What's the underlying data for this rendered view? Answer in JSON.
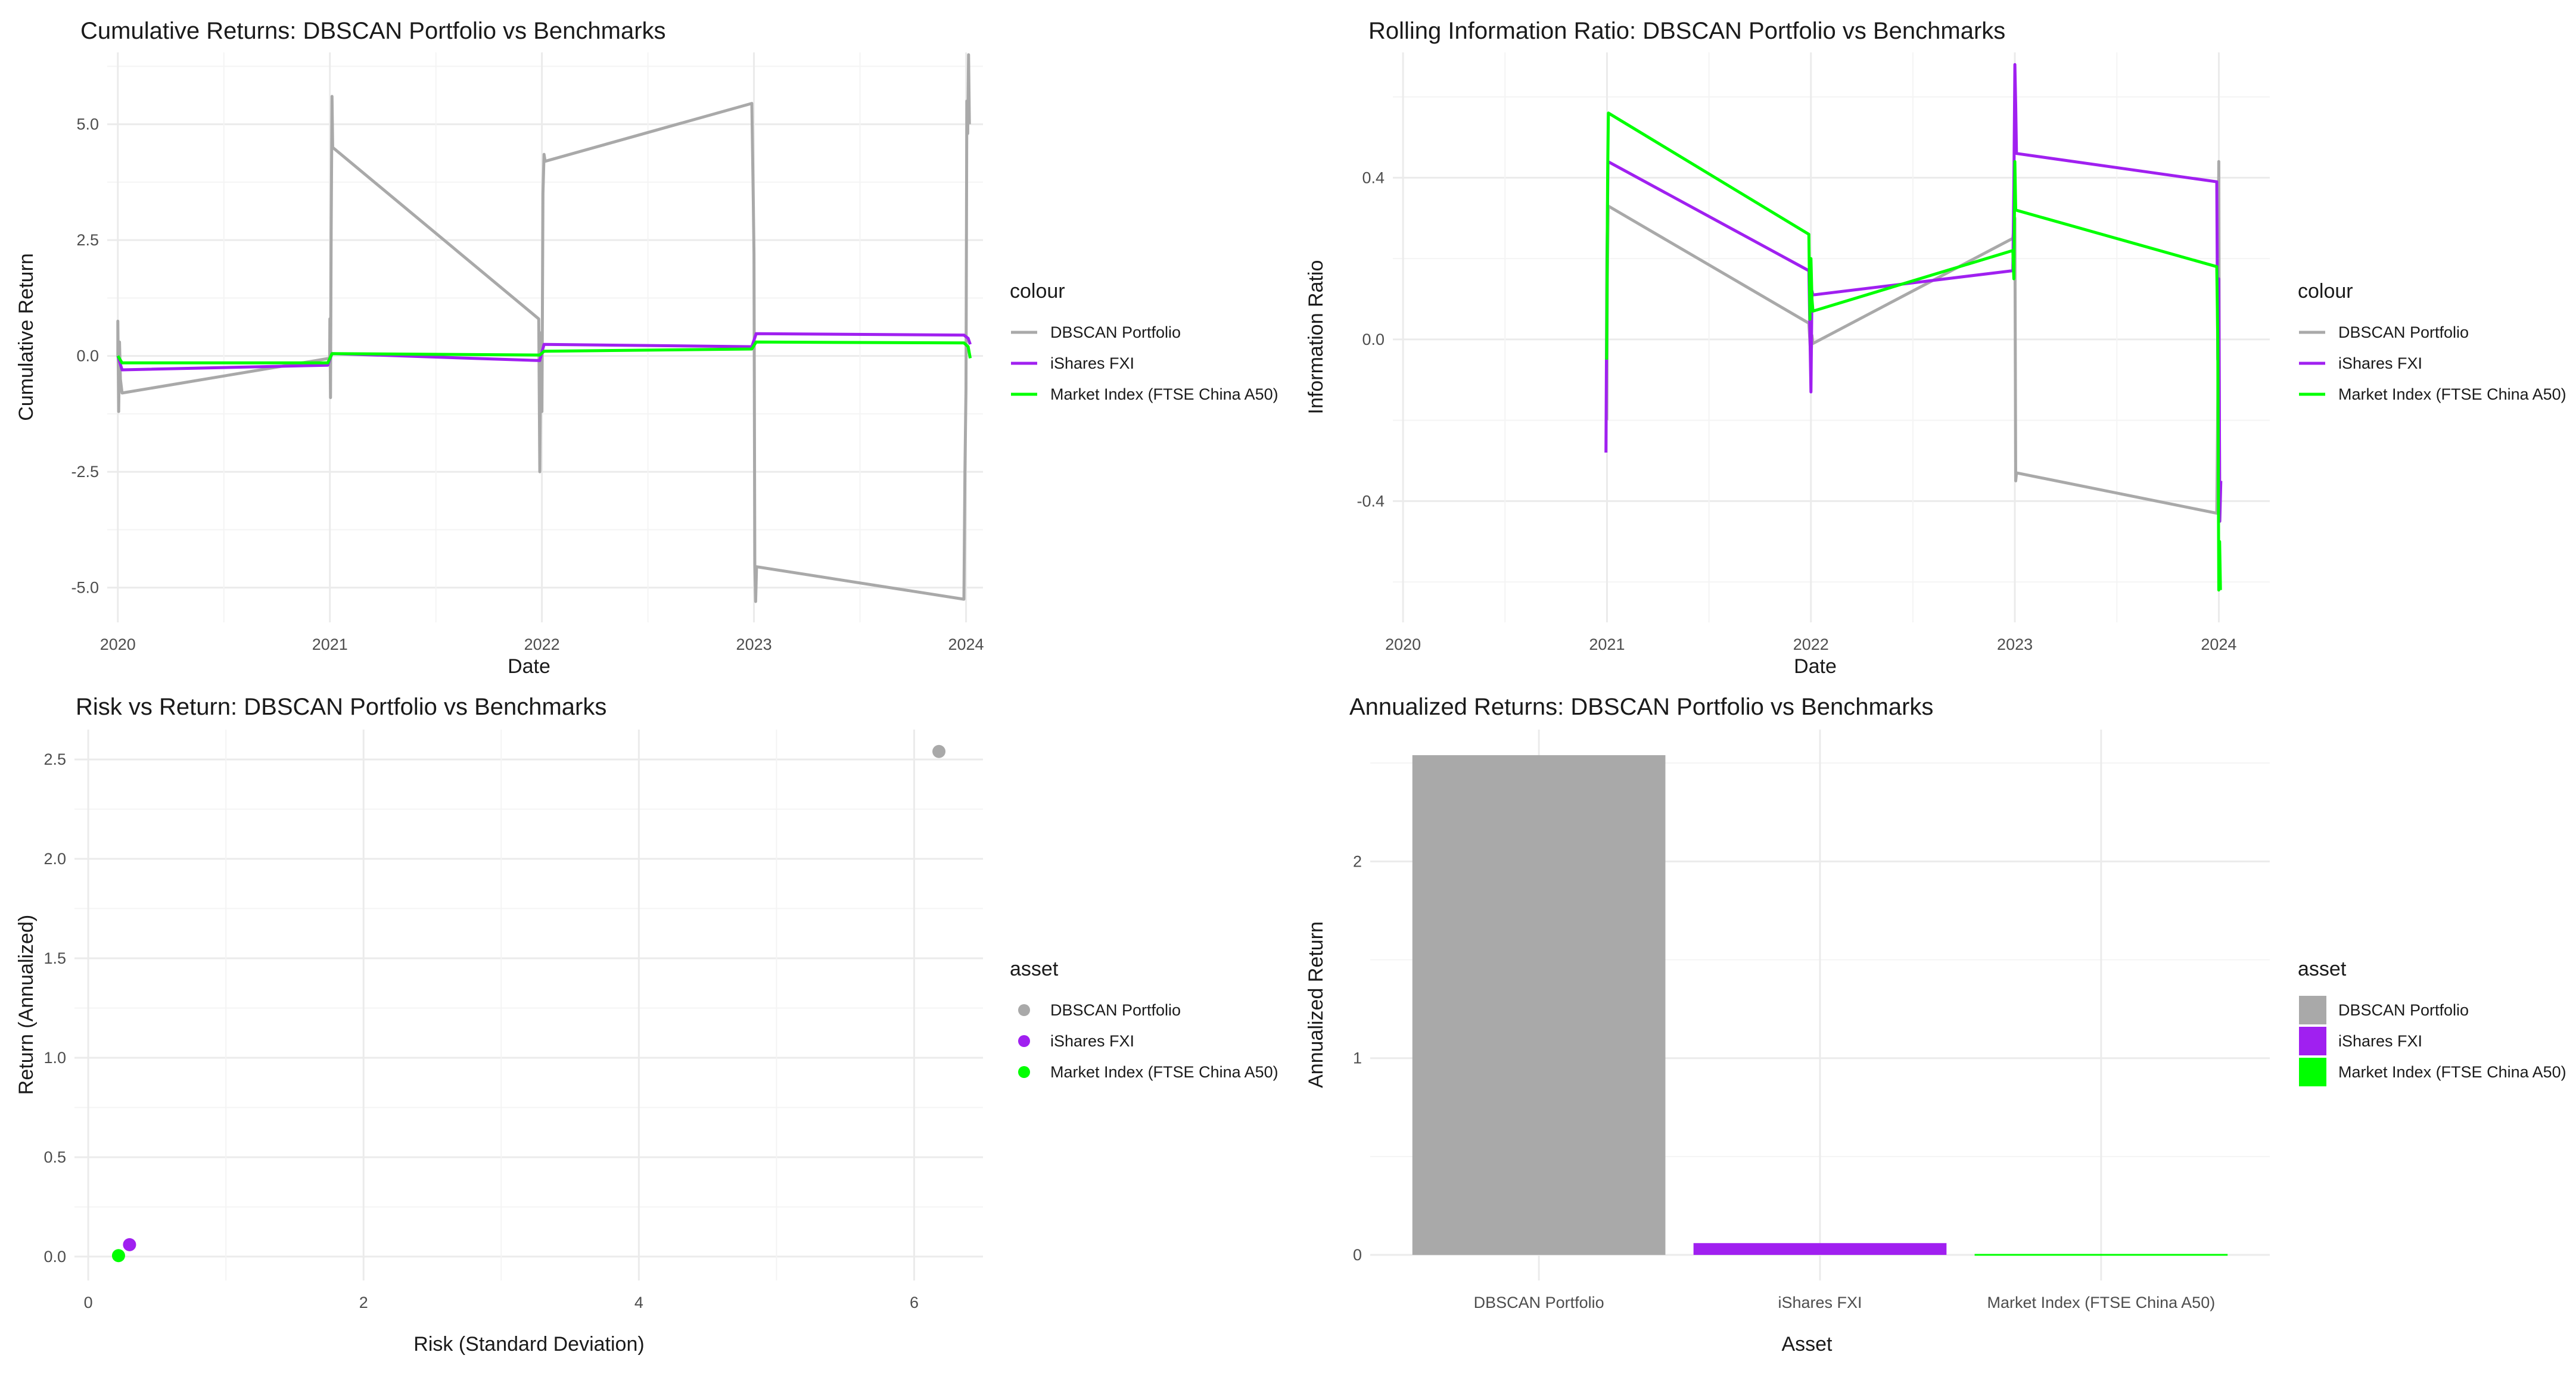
{
  "colors": {
    "dbscan": "#A9A9A9",
    "fxi": "#A020F0",
    "market": "#00FF00"
  },
  "chart_data": [
    {
      "id": "cumulative",
      "type": "line",
      "title": "Cumulative Returns: DBSCAN Portfolio vs Benchmarks",
      "xlabel": "Date",
      "ylabel": "Cumulative Return",
      "xlim": [
        2019.95,
        2024.08
      ],
      "ylim": [
        -5.75,
        6.55
      ],
      "x_ticks": [
        2020,
        2021,
        2022,
        2023,
        2024
      ],
      "x_tick_labels": [
        "2020",
        "2021",
        "2022",
        "2023",
        "2024"
      ],
      "y_ticks": [
        -5.0,
        -2.5,
        0.0,
        2.5,
        5.0
      ],
      "y_tick_labels": [
        "-5.0",
        "-2.5",
        "0.0",
        "2.5",
        "5.0"
      ],
      "legend_title": "colour",
      "series": [
        {
          "name": "DBSCAN Portfolio",
          "color_key": "dbscan",
          "points": [
            [
              2020.0,
              0.0
            ],
            [
              2020.0,
              0.75
            ],
            [
              2020.004,
              -1.2
            ],
            [
              2020.008,
              0.3
            ],
            [
              2020.012,
              -0.5
            ],
            [
              2020.02,
              -0.8
            ],
            [
              2020.999,
              -0.05
            ],
            [
              2021.0,
              0.8
            ],
            [
              2021.003,
              -0.9
            ],
            [
              2021.006,
              2.7
            ],
            [
              2021.01,
              5.6
            ],
            [
              2021.013,
              4.5
            ],
            [
              2021.985,
              0.8
            ],
            [
              2021.99,
              -2.5
            ],
            [
              2021.995,
              0.5
            ],
            [
              2022.0,
              -1.2
            ],
            [
              2022.005,
              3.5
            ],
            [
              2022.01,
              4.35
            ],
            [
              2022.015,
              4.2
            ],
            [
              2022.99,
              5.45
            ],
            [
              2022.997,
              3.3
            ],
            [
              2023.0,
              2.2
            ],
            [
              2023.004,
              -4.5
            ],
            [
              2023.008,
              -5.3
            ],
            [
              2023.012,
              -4.55
            ],
            [
              2023.99,
              -5.25
            ],
            [
              2023.995,
              -2.5
            ],
            [
              2024.0,
              -0.7
            ],
            [
              2024.004,
              5.5
            ],
            [
              2024.008,
              4.8
            ],
            [
              2024.012,
              6.5
            ],
            [
              2024.016,
              5.0
            ]
          ]
        },
        {
          "name": "iShares FXI",
          "color_key": "fxi",
          "points": [
            [
              2020.0,
              0.0
            ],
            [
              2020.02,
              -0.3
            ],
            [
              2020.99,
              -0.2
            ],
            [
              2021.01,
              0.05
            ],
            [
              2021.99,
              -0.1
            ],
            [
              2022.01,
              0.25
            ],
            [
              2022.99,
              0.2
            ],
            [
              2023.01,
              0.48
            ],
            [
              2023.99,
              0.45
            ],
            [
              2024.01,
              0.38
            ],
            [
              2024.02,
              0.25
            ]
          ]
        },
        {
          "name": "Market Index (FTSE China A50)",
          "color_key": "market",
          "points": [
            [
              2020.0,
              0.0
            ],
            [
              2020.02,
              -0.15
            ],
            [
              2020.99,
              -0.15
            ],
            [
              2021.01,
              0.05
            ],
            [
              2021.99,
              0.02
            ],
            [
              2022.01,
              0.1
            ],
            [
              2022.99,
              0.15
            ],
            [
              2023.01,
              0.3
            ],
            [
              2023.99,
              0.28
            ],
            [
              2024.01,
              0.2
            ],
            [
              2024.02,
              -0.05
            ]
          ]
        }
      ]
    },
    {
      "id": "info-ratio",
      "type": "line",
      "title": "Rolling Information Ratio: DBSCAN Portfolio vs Benchmarks",
      "xlabel": "Date",
      "ylabel": "Information Ratio",
      "xlim": [
        2019.95,
        2024.25
      ],
      "ylim": [
        -0.7,
        0.71
      ],
      "x_ticks": [
        2020,
        2021,
        2022,
        2023,
        2024
      ],
      "x_tick_labels": [
        "2020",
        "2021",
        "2022",
        "2023",
        "2024"
      ],
      "y_ticks": [
        -0.4,
        0.0,
        0.4
      ],
      "y_tick_labels": [
        "-0.4",
        "0.0",
        "0.4"
      ],
      "legend_title": "colour",
      "series": [
        {
          "name": "DBSCAN Portfolio",
          "color_key": "dbscan",
          "points": [
            [
              2020.999,
              -0.2
            ],
            [
              2021.002,
              0.15
            ],
            [
              2021.006,
              0.33
            ],
            [
              2021.99,
              0.04
            ],
            [
              2022.0,
              -0.05
            ],
            [
              2022.005,
              0.01
            ],
            [
              2022.01,
              -0.01
            ],
            [
              2022.99,
              0.25
            ],
            [
              2023.0,
              0.3
            ],
            [
              2023.004,
              -0.35
            ],
            [
              2023.008,
              -0.33
            ],
            [
              2023.99,
              -0.43
            ],
            [
              2023.995,
              -0.15
            ],
            [
              2024.0,
              0.44
            ],
            [
              2024.004,
              -0.4
            ]
          ]
        },
        {
          "name": "iShares FXI",
          "color_key": "fxi",
          "points": [
            [
              2020.995,
              -0.28
            ],
            [
              2021.0,
              0.2
            ],
            [
              2021.005,
              0.44
            ],
            [
              2021.99,
              0.17
            ],
            [
              2022.0,
              -0.13
            ],
            [
              2022.005,
              0.12
            ],
            [
              2022.01,
              0.11
            ],
            [
              2022.99,
              0.17
            ],
            [
              2022.995,
              0.38
            ],
            [
              2023.0,
              0.68
            ],
            [
              2023.004,
              0.58
            ],
            [
              2023.008,
              0.46
            ],
            [
              2023.99,
              0.39
            ],
            [
              2023.995,
              -0.05
            ],
            [
              2024.0,
              0.15
            ],
            [
              2024.005,
              -0.45
            ],
            [
              2024.01,
              -0.35
            ]
          ]
        },
        {
          "name": "Market Index (FTSE China A50)",
          "color_key": "market",
          "points": [
            [
              2020.998,
              -0.05
            ],
            [
              2021.003,
              0.4
            ],
            [
              2021.007,
              0.56
            ],
            [
              2021.99,
              0.26
            ],
            [
              2021.995,
              0.05
            ],
            [
              2022.0,
              0.2
            ],
            [
              2022.005,
              0.1
            ],
            [
              2022.01,
              0.07
            ],
            [
              2022.99,
              0.22
            ],
            [
              2022.995,
              0.15
            ],
            [
              2023.0,
              0.44
            ],
            [
              2023.004,
              0.32
            ],
            [
              2023.99,
              0.18
            ],
            [
              2023.995,
              0.0
            ],
            [
              2024.0,
              -0.62
            ],
            [
              2024.004,
              -0.5
            ],
            [
              2024.008,
              -0.62
            ]
          ]
        }
      ]
    },
    {
      "id": "risk-return",
      "type": "scatter",
      "title": "Risk vs Return: DBSCAN Portfolio vs Benchmarks",
      "xlabel": "Risk (Standard Deviation)",
      "ylabel": "Return (Annualized)",
      "xlim": [
        -0.1,
        6.5
      ],
      "ylim": [
        -0.12,
        2.65
      ],
      "x_ticks": [
        0,
        2,
        4,
        6
      ],
      "x_tick_labels": [
        "0",
        "2",
        "4",
        "6"
      ],
      "y_ticks": [
        0.0,
        0.5,
        1.0,
        1.5,
        2.0,
        2.5
      ],
      "y_tick_labels": [
        "0.0",
        "0.5",
        "1.0",
        "1.5",
        "2.0",
        "2.5"
      ],
      "legend_title": "asset",
      "points": [
        {
          "name": "DBSCAN Portfolio",
          "color_key": "dbscan",
          "x": 6.18,
          "y": 2.54
        },
        {
          "name": "iShares FXI",
          "color_key": "fxi",
          "x": 0.3,
          "y": 0.06
        },
        {
          "name": "Market Index (FTSE China A50)",
          "color_key": "market",
          "x": 0.22,
          "y": 0.005
        }
      ]
    },
    {
      "id": "annualized",
      "type": "bar",
      "title": "Annualized Returns: DBSCAN Portfolio vs Benchmarks",
      "xlabel": "Asset",
      "ylabel": "Annualized Return",
      "ylim": [
        -0.13,
        2.67
      ],
      "y_ticks": [
        0,
        1,
        2
      ],
      "y_tick_labels": [
        "0",
        "1",
        "2"
      ],
      "categories": [
        "DBSCAN Portfolio",
        "iShares FXI",
        "Market Index (FTSE China A50)"
      ],
      "values": [
        2.54,
        0.06,
        0.005
      ],
      "color_keys": [
        "dbscan",
        "fxi",
        "market"
      ],
      "legend_title": "asset"
    }
  ]
}
